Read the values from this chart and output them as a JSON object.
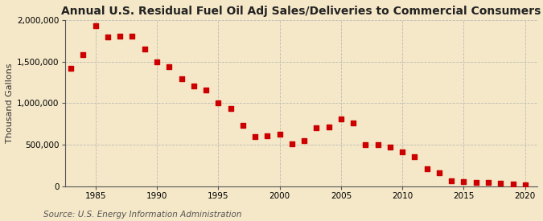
{
  "title": "Annual U.S. Residual Fuel Oil Adj Sales/Deliveries to Commercial Consumers",
  "ylabel": "Thousand Gallons",
  "source": "Source: U.S. Energy Information Administration",
  "background_color": "#f5e8c8",
  "plot_background_color": "#f5e8c8",
  "marker_color": "#cc0000",
  "years": [
    1983,
    1984,
    1985,
    1986,
    1987,
    1988,
    1989,
    1990,
    1991,
    1992,
    1993,
    1994,
    1995,
    1996,
    1997,
    1998,
    1999,
    2000,
    2001,
    2002,
    2003,
    2004,
    2005,
    2006,
    2007,
    2008,
    2009,
    2010,
    2011,
    2012,
    2013,
    2014,
    2015,
    2016,
    2017,
    2018,
    2019,
    2020
  ],
  "values": [
    1420000,
    1580000,
    1930000,
    1800000,
    1810000,
    1810000,
    1650000,
    1500000,
    1440000,
    1290000,
    1210000,
    1160000,
    1000000,
    940000,
    730000,
    600000,
    610000,
    630000,
    515000,
    550000,
    700000,
    710000,
    810000,
    760000,
    500000,
    500000,
    470000,
    410000,
    355000,
    210000,
    160000,
    65000,
    55000,
    50000,
    45000,
    35000,
    25000,
    20000
  ],
  "ylim": [
    0,
    2000000
  ],
  "yticks": [
    0,
    500000,
    1000000,
    1500000,
    2000000
  ],
  "xticks": [
    1985,
    1990,
    1995,
    2000,
    2005,
    2010,
    2015,
    2020
  ],
  "xlim": [
    1982.5,
    2021
  ],
  "grid_color": "#b0b0b0",
  "title_fontsize": 10,
  "label_fontsize": 8,
  "tick_fontsize": 7.5,
  "source_fontsize": 7.5,
  "marker_size": 14
}
